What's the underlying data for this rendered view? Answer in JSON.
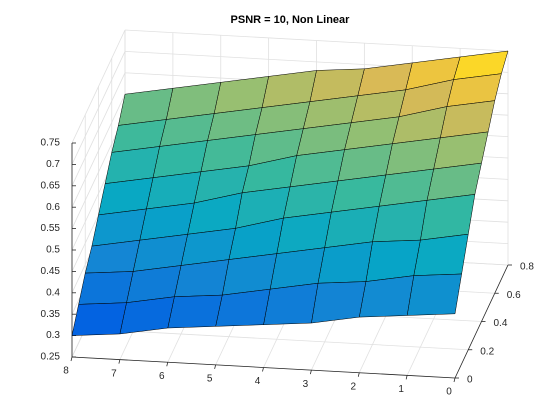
{
  "chart_data": {
    "type": "surface",
    "title": "PSNR = 10, Non Linear",
    "x": [
      0,
      1,
      2,
      3,
      4,
      5,
      6,
      7,
      8
    ],
    "y": [
      0,
      0.1,
      0.2,
      0.3,
      0.4,
      0.5,
      0.6,
      0.7,
      0.8
    ],
    "z": [
      [
        0.4,
        0.39,
        0.38,
        0.36,
        0.35,
        0.34,
        0.33,
        0.31,
        0.3
      ],
      [
        0.46,
        0.45,
        0.43,
        0.42,
        0.4,
        0.38,
        0.37,
        0.35,
        0.34
      ],
      [
        0.52,
        0.5,
        0.49,
        0.47,
        0.45,
        0.43,
        0.41,
        0.39,
        0.38
      ],
      [
        0.58,
        0.56,
        0.54,
        0.52,
        0.5,
        0.47,
        0.45,
        0.43,
        0.41
      ],
      [
        0.62,
        0.6,
        0.58,
        0.56,
        0.54,
        0.52,
        0.49,
        0.47,
        0.45
      ],
      [
        0.66,
        0.64,
        0.62,
        0.6,
        0.58,
        0.55,
        0.53,
        0.51,
        0.49
      ],
      [
        0.7,
        0.68,
        0.65,
        0.63,
        0.61,
        0.59,
        0.57,
        0.55,
        0.53
      ],
      [
        0.73,
        0.71,
        0.68,
        0.66,
        0.64,
        0.62,
        0.6,
        0.58,
        0.56
      ],
      [
        0.75,
        0.73,
        0.71,
        0.69,
        0.68,
        0.66,
        0.64,
        0.62,
        0.6
      ]
    ],
    "xlim": [
      0,
      8
    ],
    "xticks": [
      0,
      1,
      2,
      3,
      4,
      5,
      6,
      7,
      8
    ],
    "ylim": [
      0,
      0.8
    ],
    "yticks": [
      0,
      0.2,
      0.4,
      0.6,
      0.8
    ],
    "zlim": [
      0.25,
      0.75
    ],
    "zticks": [
      0.25,
      0.3,
      0.35,
      0.4,
      0.45,
      0.5,
      0.55,
      0.6,
      0.65,
      0.7,
      0.75
    ],
    "colormap": "parula",
    "grid": true
  }
}
